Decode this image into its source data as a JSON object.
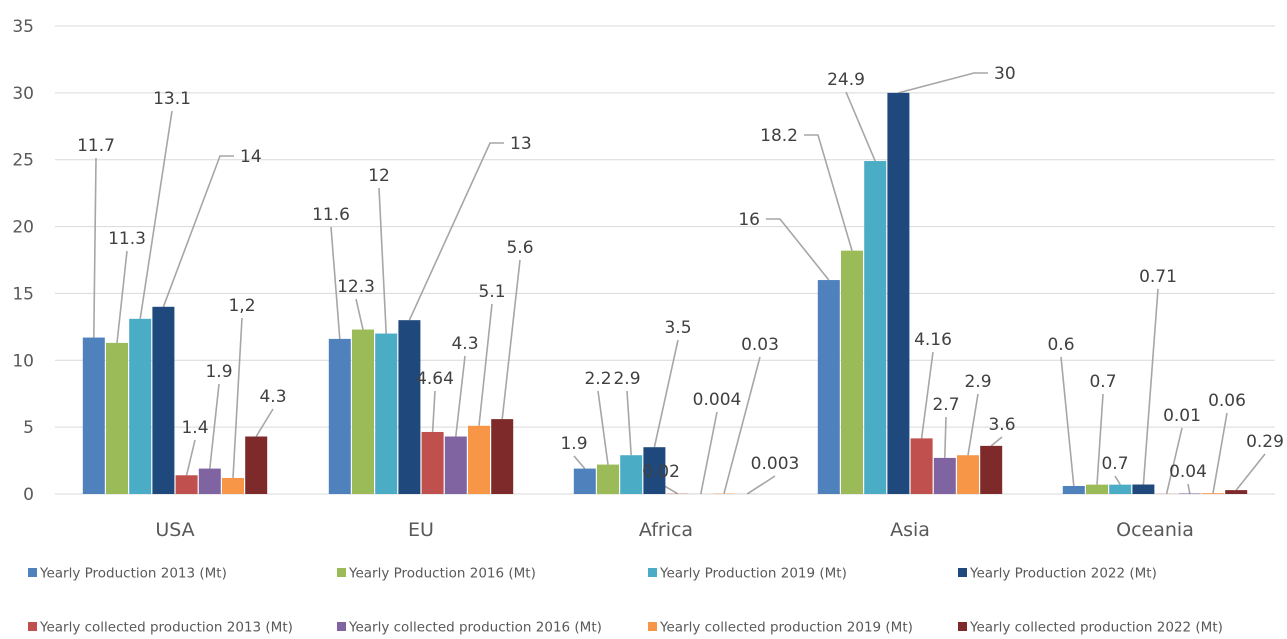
{
  "chart_data": {
    "type": "bar",
    "categories": [
      "USA",
      "EU",
      "Africa",
      "Asia",
      "Oceania"
    ],
    "ylim": [
      0,
      35
    ],
    "yticks": [
      0,
      5,
      10,
      15,
      20,
      25,
      30,
      35
    ],
    "grid": true,
    "legend_position": "bottom",
    "series": [
      {
        "name": "Yearly Production 2013 (Mt)",
        "color": "#4F81BD",
        "values": [
          11.7,
          11.6,
          1.9,
          16,
          0.6
        ],
        "labels": [
          "11.7",
          "11.6",
          "1.9",
          "16",
          "0.6"
        ]
      },
      {
        "name": "Yearly Production 2016 (Mt)",
        "color": "#9BBB59",
        "values": [
          11.3,
          12.3,
          2.2,
          18.2,
          0.7
        ],
        "labels": [
          "11.3",
          "12.3",
          "2.2",
          "18.2",
          "0.7"
        ]
      },
      {
        "name": "Yearly Production 2019 (Mt)",
        "color": "#4BACC6",
        "values": [
          13.1,
          12,
          2.9,
          24.9,
          0.7
        ],
        "labels": [
          "13.1",
          "12",
          "2.9",
          "24.9",
          "0.7"
        ]
      },
      {
        "name": "Yearly Production 2022 (Mt)",
        "color": "#1F497D",
        "values": [
          14,
          13,
          3.5,
          30,
          0.71
        ],
        "labels": [
          "14",
          "13",
          "3.5",
          "30",
          "0.71"
        ]
      },
      {
        "name": "Yearly collected production 2013 (Mt)",
        "color": "#C0504D",
        "values": [
          1.4,
          4.64,
          0.02,
          4.16,
          0.01
        ],
        "labels": [
          "1.4",
          "4.64",
          "0.02",
          "4.16",
          "0.01"
        ]
      },
      {
        "name": "Yearly collected production 2016 (Mt)",
        "color": "#8064A2",
        "values": [
          1.9,
          4.3,
          0.004,
          2.7,
          0.04
        ],
        "labels": [
          "1.9",
          "4.3",
          "0.004",
          "2.7",
          "0.04"
        ]
      },
      {
        "name": "Yearly collected production 2019 (Mt)",
        "color": "#F79646",
        "values": [
          1.2,
          5.1,
          0.03,
          2.9,
          0.06
        ],
        "labels": [
          "1,2",
          "5.1",
          "0.03",
          "2.9",
          "0.06"
        ]
      },
      {
        "name": "Yearly collected production 2022 (Mt)",
        "color": "#7F2A2A",
        "values": [
          4.3,
          5.6,
          0.003,
          3.6,
          0.29
        ],
        "labels": [
          "4.3",
          "5.6",
          "0.003",
          "3.6",
          "0.29"
        ]
      }
    ]
  }
}
